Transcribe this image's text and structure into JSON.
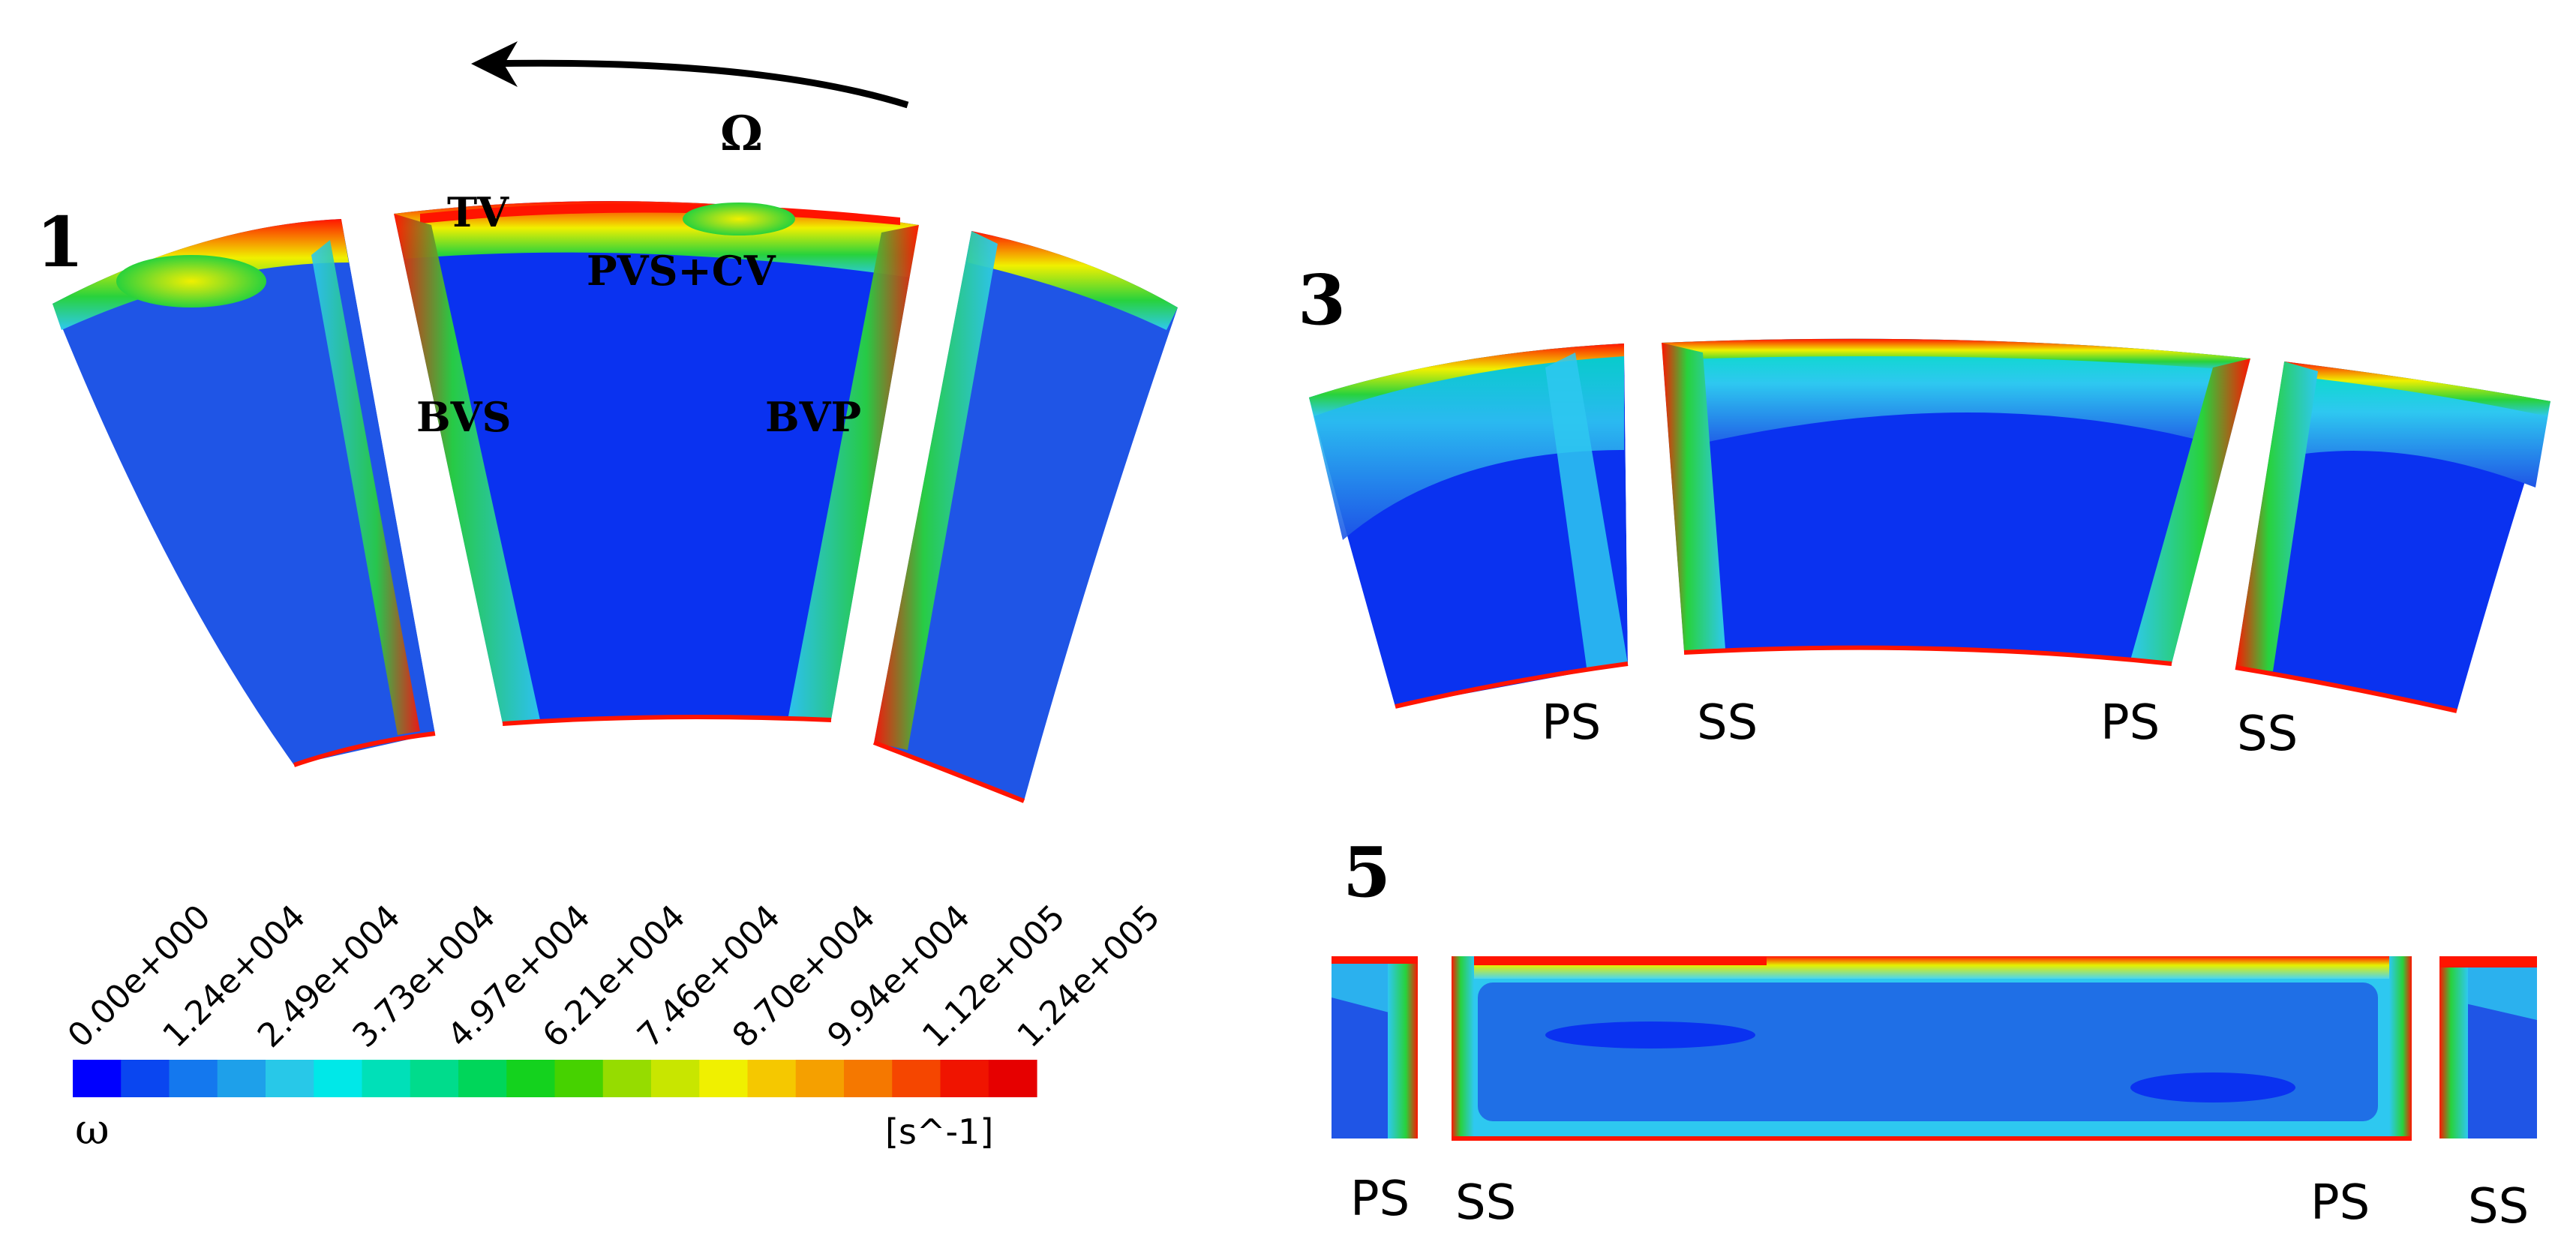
{
  "rotation": {
    "symbol": "Ω"
  },
  "panels": [
    {
      "number": "1",
      "annotations": [
        "TV",
        "PVS+CV",
        "BVS",
        "BVP"
      ]
    },
    {
      "number": "3",
      "surface_labels": [
        "PS",
        "SS",
        "PS",
        "SS"
      ]
    },
    {
      "number": "5",
      "surface_labels": [
        "PS",
        "SS",
        "PS",
        "SS"
      ]
    }
  ],
  "colorbar": {
    "quantity": "ω",
    "unit": "[s^-1]",
    "ticks": [
      "0.00e+000",
      "1.24e+004",
      "2.49e+004",
      "3.73e+004",
      "4.97e+004",
      "6.21e+004",
      "7.46e+004",
      "8.70e+004",
      "9.94e+004",
      "1.12e+005",
      "1.24e+005"
    ],
    "colors": [
      "#0000ff",
      "#0a46f0",
      "#1478ee",
      "#1ea0ea",
      "#28c8e8",
      "#00e8e8",
      "#00e0b8",
      "#00dc8c",
      "#00d65a",
      "#14d21e",
      "#46d200",
      "#96dc00",
      "#c8e600",
      "#f0f000",
      "#f5c800",
      "#f5a000",
      "#f57800",
      "#f54600",
      "#f01400",
      "#e60000"
    ]
  },
  "colors": {
    "deep_blue": "#1f55e6",
    "core_blue": "#0a32f0",
    "cyan": "#2ec8f0",
    "light_cyan": "#4cd6ee",
    "green": "#28d23c",
    "yellow": "#e6f000",
    "red": "#ff1400",
    "blade": "#ffffff"
  }
}
